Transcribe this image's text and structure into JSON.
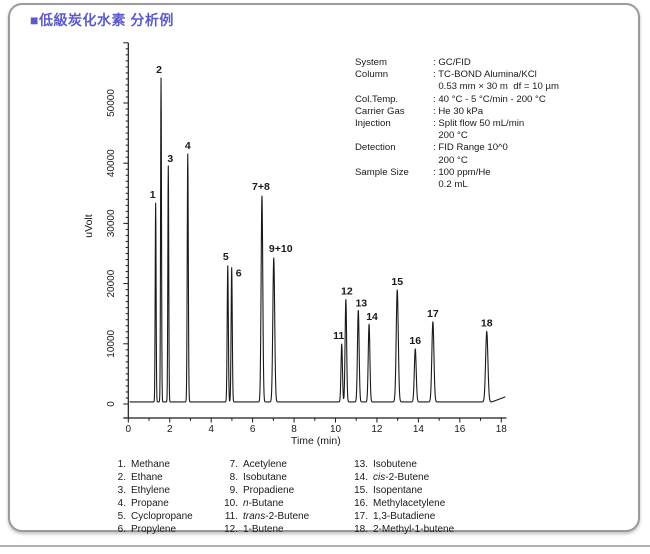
{
  "page": {
    "title": "■低級炭化水素 分析例",
    "title_color": "#5b5bcb"
  },
  "info_panel": {
    "rows": [
      {
        "label": "System",
        "value": ": GC/FID"
      },
      {
        "label": "Column",
        "value": ": TC-BOND Alumina/KCl"
      },
      {
        "label": "",
        "value": "  0.53 mm × 30 m  df = 10 µm"
      },
      {
        "label": "Col.Temp.",
        "value": ": 40 °C - 5 °C/min - 200 °C"
      },
      {
        "label": "Carrier Gas",
        "value": ": He 30 kPa"
      },
      {
        "label": "Injection",
        "value": ": Split flow 50 mL/min"
      },
      {
        "label": "",
        "value": "  200 °C"
      },
      {
        "label": "Detection",
        "value": ": FID Range 10^0"
      },
      {
        "label": "",
        "value": "  200 °C"
      },
      {
        "label": "Sample Size",
        "value": ": 100 ppm/He"
      },
      {
        "label": "",
        "value": "  0.2 mL"
      }
    ]
  },
  "chart_data": {
    "type": "line",
    "title": "",
    "xlabel": "Time (min)",
    "ylabel": "uVolt",
    "xlim": [
      0,
      18
    ],
    "ylim": [
      0,
      60000
    ],
    "x_major_ticks": [
      0,
      2,
      4,
      6,
      8,
      10,
      12,
      14,
      16,
      18
    ],
    "x_minor_step": 1,
    "y_major_ticks": [
      0,
      10000,
      20000,
      30000,
      40000,
      50000
    ],
    "y_minor_step": 1000,
    "y_axis_top": 60000,
    "grid": false,
    "line_color": "#1a1a1a",
    "baseline_uv": 350,
    "end_rise": {
      "start_min": 17.55,
      "slope_uv_per_min": 1300
    },
    "trace_t_start": 0.06,
    "trace_t_end": 18.2,
    "peaks": [
      {
        "label": "1",
        "compound": "Methane",
        "time_min": 1.32,
        "height_uv": 33000,
        "sigma_min": 0.022,
        "label_dx": -3,
        "label_dy": -5
      },
      {
        "label": "2",
        "compound": "Ethane",
        "time_min": 1.58,
        "height_uv": 53800,
        "sigma_min": 0.022,
        "label_dx": -2,
        "label_dy": -5
      },
      {
        "label": "3",
        "compound": "Ethylene",
        "time_min": 1.93,
        "height_uv": 39200,
        "sigma_min": 0.022,
        "label_dx": 2,
        "label_dy": -4
      },
      {
        "label": "4",
        "compound": "Propane",
        "time_min": 2.87,
        "height_uv": 41200,
        "sigma_min": 0.026,
        "label_dx": 0,
        "label_dy": -5
      },
      {
        "label": "5",
        "compound": "Cyclopropane",
        "time_min": 4.8,
        "height_uv": 22600,
        "sigma_min": 0.028,
        "label_dx": -2,
        "label_dy": -6
      },
      {
        "label": "6",
        "compound": "Propylene",
        "time_min": 4.99,
        "height_uv": 22300,
        "sigma_min": 0.028,
        "label_dx": 7,
        "label_dy": 9
      },
      {
        "label": "7+8",
        "compound": "Acetylene + Isobutane",
        "time_min": 6.45,
        "height_uv": 34200,
        "sigma_min": 0.04,
        "label_dx": -1,
        "label_dy": -6
      },
      {
        "label": "9+10",
        "compound": "Propadiene + n-Butane",
        "time_min": 7.02,
        "height_uv": 23900,
        "sigma_min": 0.045,
        "label_dx": 7,
        "label_dy": -6
      },
      {
        "label": "11",
        "compound": "trans-2-Butene",
        "time_min": 10.3,
        "height_uv": 9600,
        "sigma_min": 0.035,
        "label_dx": -3,
        "label_dy": -5
      },
      {
        "label": "12",
        "compound": "1-Butene",
        "time_min": 10.5,
        "height_uv": 17000,
        "sigma_min": 0.037,
        "label_dx": 1,
        "label_dy": -5
      },
      {
        "label": "13",
        "compound": "Isobutene",
        "time_min": 11.1,
        "height_uv": 15200,
        "sigma_min": 0.04,
        "label_dx": 3,
        "label_dy": -4
      },
      {
        "label": "14",
        "compound": "cis-2-Butene",
        "time_min": 11.62,
        "height_uv": 12900,
        "sigma_min": 0.04,
        "label_dx": 3,
        "label_dy": -4
      },
      {
        "label": "15",
        "compound": "Isopentane",
        "time_min": 12.98,
        "height_uv": 18600,
        "sigma_min": 0.05,
        "label_dx": 0,
        "label_dy": -5
      },
      {
        "label": "16",
        "compound": "Methylacetylene",
        "time_min": 13.85,
        "height_uv": 8800,
        "sigma_min": 0.045,
        "label_dx": 0,
        "label_dy": -5
      },
      {
        "label": "17",
        "compound": "1,3-Butadiene",
        "time_min": 14.7,
        "height_uv": 13300,
        "sigma_min": 0.05,
        "label_dx": 0,
        "label_dy": -5
      },
      {
        "label": "18",
        "compound": "2-Methyl-1-butene",
        "time_min": 17.3,
        "height_uv": 11700,
        "sigma_min": 0.055,
        "label_dx": 0,
        "label_dy": -5
      }
    ]
  },
  "legend": {
    "columns": [
      [
        {
          "num": "1.",
          "italic": "",
          "rest": "Methane"
        },
        {
          "num": "2.",
          "italic": "",
          "rest": "Ethane"
        },
        {
          "num": "3.",
          "italic": "",
          "rest": "Ethylene"
        },
        {
          "num": "4.",
          "italic": "",
          "rest": "Propane"
        },
        {
          "num": "5.",
          "italic": "",
          "rest": "Cyclopropane"
        },
        {
          "num": "6.",
          "italic": "",
          "rest": "Propylene"
        }
      ],
      [
        {
          "num": "7.",
          "italic": "",
          "rest": "Acetylene"
        },
        {
          "num": "8.",
          "italic": "",
          "rest": "Isobutane"
        },
        {
          "num": "9.",
          "italic": "",
          "rest": "Propadiene"
        },
        {
          "num": "10.",
          "italic": "n",
          "rest": "-Butane"
        },
        {
          "num": "11.",
          "italic": "trans",
          "rest": "-2-Butene"
        },
        {
          "num": "12.",
          "italic": "",
          "rest": "1-Butene"
        }
      ],
      [
        {
          "num": "13.",
          "italic": "",
          "rest": "Isobutene"
        },
        {
          "num": "14.",
          "italic": "cis",
          "rest": "-2-Butene"
        },
        {
          "num": "15.",
          "italic": "",
          "rest": "Isopentane"
        },
        {
          "num": "16.",
          "italic": "",
          "rest": "Methylacetylene"
        },
        {
          "num": "17.",
          "italic": "",
          "rest": "1,3-Butadiene"
        },
        {
          "num": "18.",
          "italic": "",
          "rest": "2-Methyl-1-butene"
        }
      ]
    ]
  }
}
